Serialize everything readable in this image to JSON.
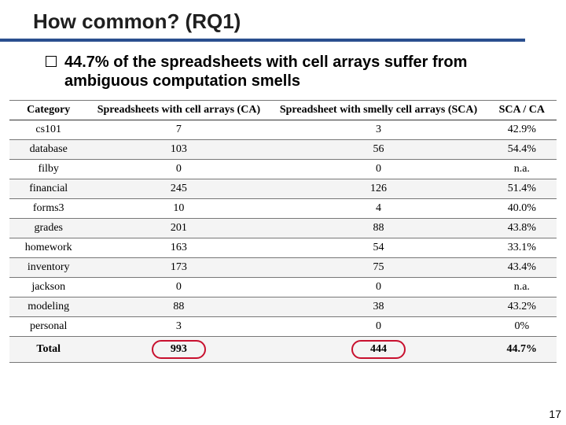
{
  "title": "How common? (RQ1)",
  "bullet": "44.7% of the spreadsheets with cell arrays suffer from ambiguous computation smells",
  "table": {
    "columns": [
      "Category",
      "Spreadsheets with cell arrays (CA)",
      "Spreadsheet with smelly cell arrays (SCA)",
      "SCA / CA"
    ],
    "rows": [
      {
        "category": "cs101",
        "ca": "7",
        "sca": "3",
        "ratio": "42.9%"
      },
      {
        "category": "database",
        "ca": "103",
        "sca": "56",
        "ratio": "54.4%"
      },
      {
        "category": "filby",
        "ca": "0",
        "sca": "0",
        "ratio": "n.a."
      },
      {
        "category": "financial",
        "ca": "245",
        "sca": "126",
        "ratio": "51.4%"
      },
      {
        "category": "forms3",
        "ca": "10",
        "sca": "4",
        "ratio": "40.0%"
      },
      {
        "category": "grades",
        "ca": "201",
        "sca": "88",
        "ratio": "43.8%"
      },
      {
        "category": "homework",
        "ca": "163",
        "sca": "54",
        "ratio": "33.1%"
      },
      {
        "category": "inventory",
        "ca": "173",
        "sca": "75",
        "ratio": "43.4%"
      },
      {
        "category": "jackson",
        "ca": "0",
        "sca": "0",
        "ratio": "n.a."
      },
      {
        "category": "modeling",
        "ca": "88",
        "sca": "38",
        "ratio": "43.2%"
      },
      {
        "category": "personal",
        "ca": "3",
        "sca": "0",
        "ratio": "0%"
      }
    ],
    "total": {
      "category": "Total",
      "ca": "993",
      "sca": "444",
      "ratio": "44.7%"
    }
  },
  "page_number": "17",
  "colors": {
    "title_underline": "#2a4f8f",
    "highlight_border": "#c8102e",
    "row_alt_bg": "#f4f4f4"
  }
}
